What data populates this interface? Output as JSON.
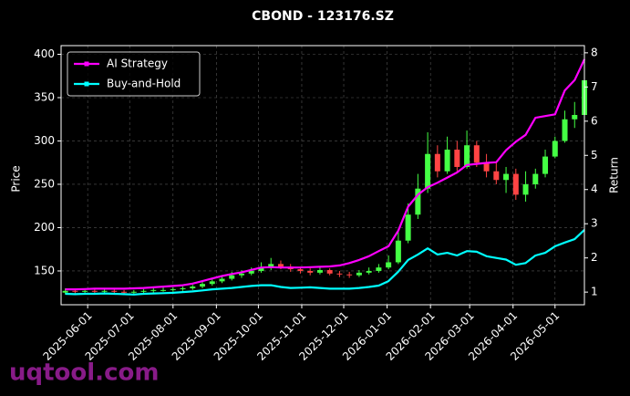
{
  "chart_data": {
    "type": "candlestick",
    "title": "CBOND - 123176.SZ",
    "ylabel": "Price",
    "y2label": "Return",
    "x": [
      "2025-05-16",
      "2025-05-23",
      "2025-05-30",
      "2025-06-06",
      "2025-06-13",
      "2025-06-20",
      "2025-06-27",
      "2025-07-04",
      "2025-07-11",
      "2025-07-18",
      "2025-07-25",
      "2025-08-01",
      "2025-08-08",
      "2025-08-15",
      "2025-08-22",
      "2025-08-29",
      "2025-09-05",
      "2025-09-12",
      "2025-09-19",
      "2025-09-26",
      "2025-10-03",
      "2025-10-10",
      "2025-10-17",
      "2025-10-24",
      "2025-10-31",
      "2025-11-07",
      "2025-11-14",
      "2025-11-21",
      "2025-11-28",
      "2025-12-05",
      "2025-12-12",
      "2025-12-19",
      "2025-12-26",
      "2026-01-02",
      "2026-01-09",
      "2026-01-16",
      "2026-01-23",
      "2026-01-30",
      "2026-02-06",
      "2026-02-13",
      "2026-02-20",
      "2026-02-27",
      "2026-03-06",
      "2026-03-13",
      "2026-03-20",
      "2026-03-27",
      "2026-04-03",
      "2026-04-10",
      "2026-04-17",
      "2026-04-24",
      "2026-05-01",
      "2026-05-08",
      "2026-05-15",
      "2026-05-22"
    ],
    "open": [
      125,
      127,
      126,
      127,
      126,
      127,
      126,
      125,
      126,
      127,
      128,
      128,
      129,
      130,
      132,
      135,
      138,
      141,
      145,
      147,
      150,
      154,
      158,
      155,
      152,
      150,
      148,
      151,
      147,
      146,
      145,
      148,
      150,
      154,
      160,
      185,
      215,
      245,
      285,
      265,
      290,
      270,
      295,
      275,
      265,
      255,
      262,
      238,
      250,
      262,
      282,
      300,
      325,
      330
    ],
    "high": [
      130,
      129,
      128,
      129,
      129,
      129,
      128,
      128,
      129,
      130,
      131,
      131,
      132,
      134,
      138,
      141,
      144,
      149,
      151,
      154,
      160,
      165,
      162,
      158,
      155,
      153,
      155,
      153,
      150,
      149,
      151,
      154,
      158,
      168,
      195,
      228,
      262,
      310,
      295,
      305,
      300,
      312,
      300,
      285,
      275,
      270,
      268,
      265,
      268,
      290,
      305,
      335,
      345,
      392
    ],
    "low": [
      123,
      124,
      124,
      124,
      124,
      124,
      123,
      122,
      124,
      125,
      126,
      126,
      127,
      128,
      130,
      133,
      136,
      139,
      142,
      145,
      148,
      151,
      152,
      149,
      147,
      145,
      146,
      145,
      143,
      142,
      143,
      146,
      148,
      152,
      158,
      182,
      210,
      240,
      258,
      262,
      265,
      268,
      270,
      258,
      250,
      240,
      232,
      230,
      245,
      258,
      280,
      298,
      315,
      328
    ],
    "close": [
      127,
      126,
      127,
      126,
      127,
      126,
      125,
      126,
      127,
      128,
      128,
      129,
      130,
      132,
      135,
      138,
      141,
      145,
      147,
      150,
      154,
      158,
      155,
      152,
      150,
      148,
      151,
      147,
      146,
      145,
      148,
      150,
      154,
      160,
      185,
      215,
      245,
      285,
      265,
      290,
      270,
      295,
      275,
      265,
      255,
      262,
      238,
      250,
      262,
      282,
      300,
      325,
      330,
      370
    ],
    "up_color": "#44ff44",
    "down_color": "#ff4444",
    "series": [
      {
        "name": "AI Strategy",
        "color": "#ff00ff",
        "axis": "y2",
        "values": [
          1.08,
          1.08,
          1.09,
          1.1,
          1.1,
          1.1,
          1.1,
          1.11,
          1.12,
          1.14,
          1.16,
          1.18,
          1.2,
          1.25,
          1.32,
          1.4,
          1.47,
          1.53,
          1.58,
          1.65,
          1.72,
          1.73,
          1.72,
          1.72,
          1.72,
          1.73,
          1.74,
          1.75,
          1.78,
          1.85,
          1.94,
          2.05,
          2.2,
          2.34,
          2.8,
          3.5,
          3.85,
          4.07,
          4.2,
          4.35,
          4.5,
          4.72,
          4.75,
          4.78,
          4.8,
          5.15,
          5.4,
          5.6,
          6.1,
          6.15,
          6.2,
          6.9,
          7.2,
          7.81
        ]
      },
      {
        "name": "Buy-and-Hold",
        "color": "#00ffff",
        "axis": "y2",
        "values": [
          0.95,
          0.94,
          0.95,
          0.95,
          0.96,
          0.95,
          0.94,
          0.93,
          0.95,
          0.96,
          0.97,
          0.98,
          1.0,
          1.02,
          1.05,
          1.08,
          1.1,
          1.12,
          1.15,
          1.18,
          1.2,
          1.2,
          1.15,
          1.12,
          1.13,
          1.14,
          1.12,
          1.1,
          1.1,
          1.1,
          1.12,
          1.15,
          1.19,
          1.32,
          1.6,
          1.94,
          2.1,
          2.28,
          2.1,
          2.15,
          2.07,
          2.2,
          2.18,
          2.05,
          2.0,
          1.95,
          1.8,
          1.85,
          2.07,
          2.15,
          2.34,
          2.45,
          2.55,
          2.82
        ]
      }
    ],
    "xlim": [
      "2025-05-13",
      "2026-05-22"
    ],
    "xticks": [
      "2025-06-01",
      "2025-07-01",
      "2025-08-01",
      "2025-09-01",
      "2025-10-01",
      "2025-11-01",
      "2025-12-01",
      "2026-01-01",
      "2026-02-01",
      "2026-03-01",
      "2026-04-01",
      "2026-05-01"
    ],
    "ylim": [
      111,
      410
    ],
    "yticks": [
      150,
      200,
      250,
      300,
      350,
      400
    ],
    "y2lim": [
      0.63,
      8.21
    ],
    "y2ticks": [
      1,
      2,
      3,
      4,
      5,
      6,
      7,
      8
    ],
    "grid": true,
    "legend": "upper left"
  },
  "watermark": "uqtool.com"
}
